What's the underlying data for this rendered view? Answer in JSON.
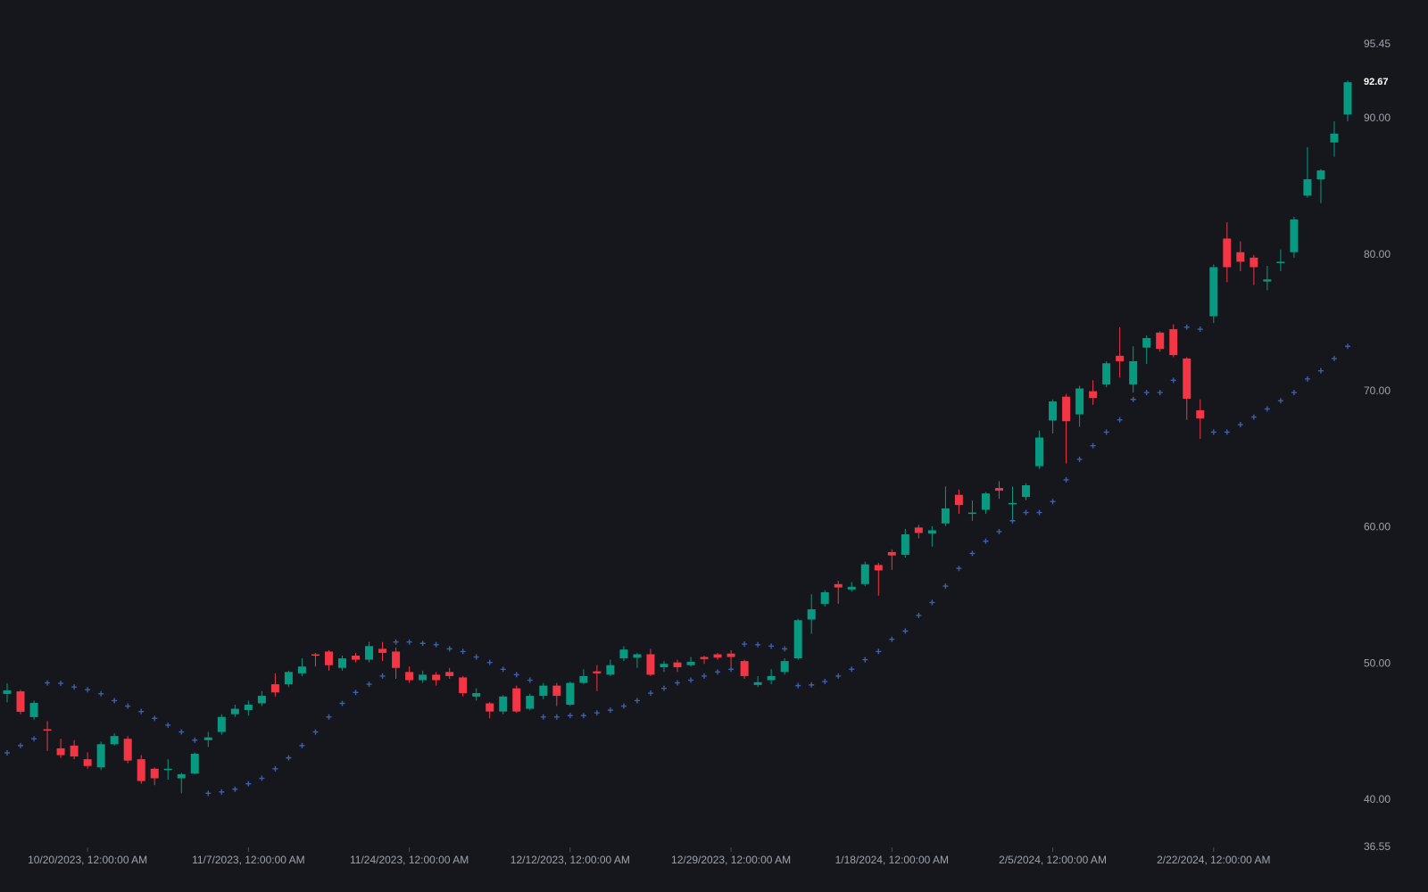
{
  "chart_data": {
    "type": "candlestick",
    "categories": [
      null,
      null,
      null,
      null,
      null,
      null,
      "10/20/2023, 12:00:00 AM",
      null,
      null,
      null,
      null,
      null,
      null,
      null,
      null,
      null,
      null,
      null,
      "11/7/2023, 12:00:00 AM",
      null,
      null,
      null,
      null,
      null,
      null,
      null,
      null,
      null,
      null,
      null,
      "11/24/2023, 12:00:00 AM",
      null,
      null,
      null,
      null,
      null,
      null,
      null,
      null,
      null,
      null,
      null,
      "12/12/2023, 12:00:00 AM",
      null,
      null,
      null,
      null,
      null,
      null,
      null,
      null,
      null,
      null,
      null,
      "12/29/2023, 12:00:00 AM",
      null,
      null,
      null,
      null,
      null,
      null,
      null,
      null,
      null,
      null,
      null,
      "1/18/2024, 12:00:00 AM",
      null,
      null,
      null,
      null,
      null,
      null,
      null,
      null,
      null,
      null,
      null,
      "2/5/2024, 12:00:00 AM",
      null,
      null,
      null,
      null,
      null,
      null,
      null,
      null,
      null,
      null,
      null,
      "2/22/2024, 12:00:00 AM",
      null,
      null,
      null,
      null,
      null,
      null,
      null,
      null,
      null,
      null
    ],
    "open": [
      47.79,
      47.98,
      46.09,
      45.2,
      43.8,
      44.0,
      43.0,
      42.4,
      44.1,
      44.5,
      43.0,
      42.3,
      42.2,
      41.6,
      41.95,
      44.4,
      45.0,
      46.3,
      46.6,
      47.1,
      48.5,
      48.5,
      49.3,
      50.7,
      50.9,
      49.7,
      50.6,
      50.3,
      51.1,
      50.9,
      49.4,
      48.8,
      49.2,
      49.4,
      49.0,
      47.6,
      47.1,
      46.5,
      48.2,
      46.7,
      47.65,
      48.4,
      47.0,
      48.6,
      49.45,
      49.2,
      50.4,
      50.45,
      50.7,
      49.75,
      50.1,
      49.9,
      50.5,
      50.7,
      50.75,
      50.2,
      48.45,
      48.8,
      49.4,
      50.4,
      53.25,
      54.4,
      55.85,
      55.45,
      55.85,
      57.25,
      58.2,
      58.0,
      60.0,
      59.55,
      60.3,
      62.4,
      61.0,
      61.3,
      62.9,
      61.7,
      62.25,
      64.5,
      67.85,
      69.6,
      68.3,
      70.0,
      70.5,
      72.6,
      70.5,
      73.2,
      74.3,
      74.55,
      72.4,
      68.6,
      75.5,
      81.2,
      80.2,
      79.8,
      78.05,
      79.4,
      80.2,
      84.35,
      85.55,
      88.25,
      90.3
    ],
    "high": [
      48.57,
      48.1,
      47.3,
      45.8,
      44.5,
      44.4,
      43.5,
      44.3,
      44.9,
      44.7,
      43.3,
      42.4,
      43.0,
      42.0,
      43.5,
      45.0,
      46.3,
      47.0,
      47.3,
      48.0,
      49.3,
      49.5,
      50.4,
      50.8,
      51.0,
      50.6,
      50.8,
      51.6,
      51.6,
      51.2,
      49.8,
      49.5,
      49.4,
      49.7,
      49.1,
      48.2,
      47.2,
      47.7,
      48.4,
      47.8,
      48.6,
      48.6,
      48.7,
      49.6,
      49.9,
      50.3,
      51.3,
      50.8,
      51.1,
      50.2,
      50.3,
      50.5,
      50.6,
      50.8,
      51.0,
      50.3,
      49.1,
      49.6,
      50.4,
      53.3,
      55.1,
      55.4,
      56.1,
      56.0,
      57.5,
      57.4,
      58.4,
      59.9,
      60.2,
      60.1,
      63.0,
      62.8,
      62.0,
      62.6,
      63.4,
      63.0,
      63.25,
      67.1,
      69.4,
      69.8,
      70.4,
      70.8,
      72.2,
      74.7,
      73.3,
      74.1,
      74.4,
      74.9,
      72.5,
      69.4,
      79.3,
      82.4,
      81.0,
      80.0,
      79.2,
      80.4,
      82.8,
      87.9,
      86.3,
      89.8,
      92.8
    ],
    "low": [
      47.17,
      46.3,
      45.9,
      43.6,
      43.1,
      43.0,
      42.3,
      42.2,
      44.0,
      42.7,
      41.2,
      41.1,
      41.5,
      40.5,
      41.9,
      43.9,
      44.8,
      46.1,
      46.2,
      46.9,
      47.6,
      48.3,
      49.1,
      49.8,
      49.5,
      49.5,
      50.1,
      50.1,
      50.2,
      48.9,
      48.6,
      48.6,
      48.4,
      48.9,
      47.6,
      47.3,
      46.0,
      46.3,
      46.4,
      46.6,
      47.4,
      46.9,
      46.9,
      48.5,
      48.0,
      49.1,
      50.2,
      49.7,
      49.1,
      49.4,
      49.4,
      49.8,
      50.0,
      50.3,
      49.7,
      48.9,
      48.3,
      48.5,
      49.2,
      50.3,
      52.2,
      54.2,
      54.4,
      55.3,
      55.7,
      55.0,
      56.9,
      57.8,
      59.2,
      58.6,
      60.1,
      61.0,
      60.5,
      61.0,
      62.1,
      60.5,
      62.0,
      64.3,
      66.9,
      64.7,
      67.4,
      69.0,
      70.3,
      71.0,
      69.9,
      72.0,
      72.9,
      72.5,
      67.9,
      66.5,
      75.0,
      78.0,
      78.8,
      77.8,
      77.4,
      78.8,
      79.8,
      84.2,
      83.8,
      87.2,
      89.8
    ],
    "close": [
      48.05,
      46.48,
      47.13,
      45.1,
      43.3,
      43.2,
      42.5,
      44.1,
      44.7,
      42.9,
      41.4,
      41.6,
      42.3,
      41.9,
      43.4,
      44.6,
      46.1,
      46.7,
      47.0,
      47.65,
      47.9,
      49.4,
      49.8,
      50.6,
      49.9,
      50.4,
      50.3,
      51.3,
      50.8,
      49.7,
      48.8,
      49.2,
      48.8,
      49.1,
      47.85,
      47.85,
      46.5,
      47.6,
      46.5,
      47.65,
      48.4,
      47.65,
      48.6,
      49.1,
      49.3,
      49.9,
      51.05,
      50.7,
      49.2,
      50.0,
      49.75,
      50.15,
      50.35,
      50.45,
      50.5,
      49.1,
      48.65,
      49.1,
      50.2,
      53.2,
      54.0,
      55.25,
      55.6,
      55.65,
      57.3,
      56.85,
      57.95,
      59.5,
      59.6,
      59.8,
      61.4,
      61.65,
      61.1,
      62.5,
      62.7,
      61.8,
      63.1,
      66.6,
      69.25,
      67.8,
      70.2,
      69.5,
      72.05,
      72.2,
      72.2,
      73.9,
      73.1,
      72.65,
      69.45,
      68.0,
      79.1,
      79.1,
      79.5,
      79.1,
      78.2,
      79.5,
      82.6,
      85.55,
      86.2,
      88.9,
      92.67
    ],
    "sar": [
      43.47,
      44.0,
      44.5,
      48.6,
      48.57,
      48.3,
      48.1,
      47.8,
      47.3,
      46.9,
      46.5,
      46.0,
      45.5,
      45.0,
      44.4,
      40.5,
      40.6,
      40.8,
      41.2,
      41.6,
      42.3,
      43.1,
      44.0,
      45.0,
      46.1,
      47.1,
      47.9,
      48.5,
      49.1,
      51.6,
      51.6,
      51.5,
      51.4,
      51.1,
      50.9,
      50.5,
      50.1,
      49.6,
      49.2,
      48.8,
      46.1,
      46.1,
      46.2,
      46.2,
      46.4,
      46.6,
      46.9,
      47.3,
      47.85,
      48.2,
      48.6,
      48.8,
      49.1,
      49.4,
      49.6,
      51.45,
      51.4,
      51.3,
      51.1,
      48.4,
      48.45,
      48.7,
      49.1,
      49.6,
      50.3,
      50.9,
      51.8,
      52.4,
      53.55,
      54.5,
      55.7,
      57.0,
      58.1,
      59.0,
      59.7,
      60.5,
      61.1,
      61.1,
      61.9,
      63.5,
      65.0,
      66.0,
      67.0,
      67.9,
      69.4,
      69.9,
      69.9,
      70.8,
      74.7,
      74.55,
      67.0,
      67.0,
      67.55,
      68.1,
      68.7,
      69.3,
      69.9,
      70.9,
      71.5,
      72.4,
      73.3
    ],
    "up_color": "#089981",
    "down_color": "#f23645",
    "sar_color": "#3f5fa8",
    "ylim": [
      36.55,
      95.45
    ],
    "yticks": [
      36.55,
      {
        "value": 40,
        "label": "40.00"
      },
      {
        "value": 50,
        "label": "50.00"
      },
      {
        "value": 60,
        "label": "60.00"
      },
      {
        "value": 70,
        "label": "70.00"
      },
      {
        "value": 80,
        "label": "80.00"
      },
      {
        "value": 90,
        "label": "90.00"
      },
      95.45
    ],
    "grid": false
  }
}
